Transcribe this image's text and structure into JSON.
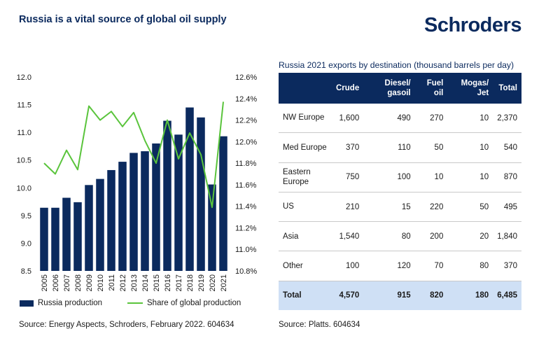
{
  "title": "Russia is a vital source of global oil supply",
  "logo": "Schroders",
  "chart_data": {
    "type": "bar",
    "categories": [
      "2005",
      "2006",
      "2007",
      "2008",
      "2009",
      "2010",
      "2011",
      "2012",
      "2013",
      "2014",
      "2015",
      "2016",
      "2017",
      "2018",
      "2019",
      "2020",
      "2021"
    ],
    "series": [
      {
        "name": "Russia production",
        "type": "bar",
        "axis": "left",
        "color": "#0b2a5e",
        "values": [
          9.64,
          9.64,
          9.82,
          9.74,
          10.05,
          10.16,
          10.32,
          10.47,
          10.63,
          10.66,
          10.8,
          11.21,
          10.96,
          11.45,
          11.27,
          10.06,
          10.93
        ]
      },
      {
        "name": "Share of global production",
        "type": "line",
        "axis": "right",
        "color": "#5ac43c",
        "values": [
          11.8,
          11.7,
          11.92,
          11.74,
          12.33,
          12.2,
          12.28,
          12.14,
          12.27,
          12.01,
          11.8,
          12.2,
          11.84,
          12.08,
          11.88,
          11.39,
          12.37
        ]
      }
    ],
    "ylim_left": [
      8.5,
      12.0
    ],
    "ylim_right": [
      10.8,
      12.6
    ],
    "yticks_left": [
      "12.0",
      "11.5",
      "11.0",
      "10.5",
      "10.0",
      "9.5",
      "9.0",
      "8.5"
    ],
    "yticks_right": [
      "12.6%",
      "12.4%",
      "12.2%",
      "12.0%",
      "11.8%",
      "11.6%",
      "11.4%",
      "11.2%",
      "11.0%",
      "10.8%"
    ],
    "legend_position": "bottom",
    "source": "Source: Energy Aspects, Schroders, February 2022. 604634"
  },
  "table": {
    "title": "Russia 2021 exports by destination (thousand barrels per day)",
    "headers": [
      "",
      "Crude",
      "Diesel/ gasoil",
      "Fuel oil",
      "Mogas/ Jet",
      "Total"
    ],
    "rows": [
      [
        "NW Europe",
        "1,600",
        "490",
        "270",
        "10",
        "2,370"
      ],
      [
        "Med Europe",
        "370",
        "110",
        "50",
        "10",
        "540"
      ],
      [
        "Eastern Europe",
        "750",
        "100",
        "10",
        "10",
        "870"
      ],
      [
        "US",
        "210",
        "15",
        "220",
        "50",
        "495"
      ],
      [
        "Asia",
        "1,540",
        "80",
        "200",
        "20",
        "1,840"
      ],
      [
        "Other",
        "100",
        "120",
        "70",
        "80",
        "370"
      ]
    ],
    "total": [
      "Total",
      "4,570",
      "915",
      "820",
      "180",
      "6,485"
    ],
    "source": "Source: Platts. 604634"
  }
}
